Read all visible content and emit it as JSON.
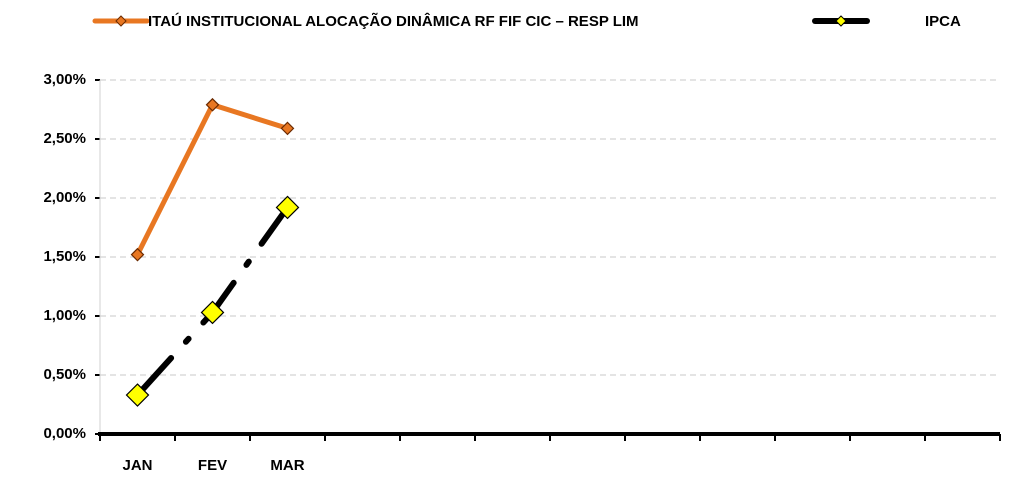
{
  "chart_data": {
    "type": "line",
    "categories": [
      "JAN",
      "FEV",
      "MAR",
      null,
      null,
      null,
      null,
      null,
      null,
      null,
      null,
      null
    ],
    "series": [
      {
        "name": "ITAÚ INSTITUCIONAL ALOCAÇÃO DINÂMICA RF FIF CIC – RESP LIM",
        "color": "#e87722",
        "marker_color": "#e87722",
        "values": [
          1.52,
          2.79,
          2.59,
          null,
          null,
          null,
          null,
          null,
          null,
          null,
          null,
          null
        ]
      },
      {
        "name": "IPCA",
        "color": "#000000",
        "marker_color": "#ffff00",
        "values": [
          0.33,
          1.03,
          1.92,
          null,
          null,
          null,
          null,
          null,
          null,
          null,
          null,
          null
        ]
      }
    ],
    "ylim": [
      0,
      3
    ],
    "yticks": [
      {
        "value": 0,
        "label": "0,00%"
      },
      {
        "value": 0.5,
        "label": "0,50%"
      },
      {
        "value": 1,
        "label": "1,00%"
      },
      {
        "value": 1.5,
        "label": "1,50%"
      },
      {
        "value": 2,
        "label": "2,00%"
      },
      {
        "value": 2.5,
        "label": "2,50%"
      },
      {
        "value": 3,
        "label": "3,00%"
      }
    ],
    "grid": true,
    "legend": "top"
  }
}
